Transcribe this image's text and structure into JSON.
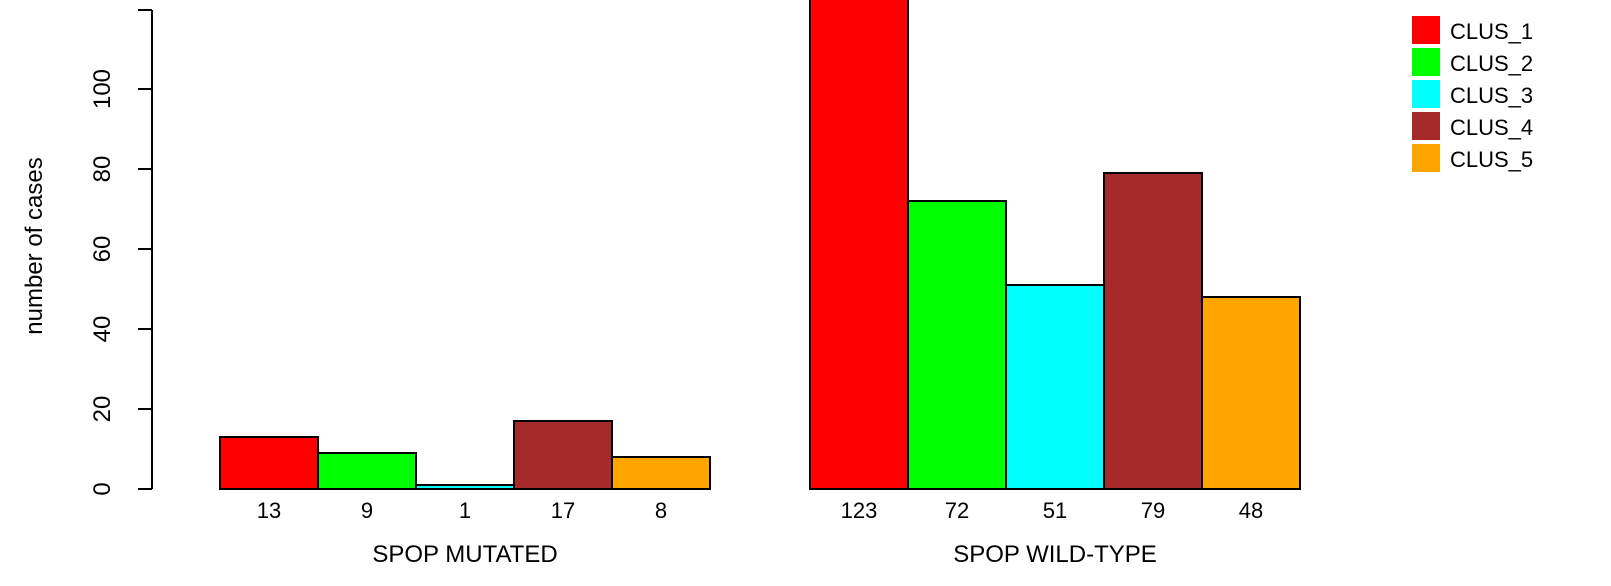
{
  "chart_data": {
    "type": "bar",
    "xlabel": "",
    "ylabel": "number of cases",
    "ylim": [
      0,
      120
    ],
    "yticks": [
      0,
      20,
      40,
      60,
      80,
      100
    ],
    "groups": [
      {
        "label": "SPOP MUTATED",
        "values": [
          13,
          9,
          1,
          17,
          8
        ],
        "value_labels": [
          "13",
          "9",
          "1",
          "17",
          "8"
        ]
      },
      {
        "label": "SPOP WILD-TYPE",
        "values": [
          123,
          72,
          51,
          79,
          48
        ],
        "value_labels": [
          "123",
          "72",
          "51",
          "79",
          "48"
        ]
      }
    ],
    "series": [
      {
        "name": "CLUS_1",
        "color": "#ff0000"
      },
      {
        "name": "CLUS_2",
        "color": "#00ff00"
      },
      {
        "name": "CLUS_3",
        "color": "#00ffff"
      },
      {
        "name": "CLUS_4",
        "color": "#a52a2a"
      },
      {
        "name": "CLUS_5",
        "color": "#ffa500"
      }
    ],
    "legend_position": "top-right",
    "grid": false
  }
}
